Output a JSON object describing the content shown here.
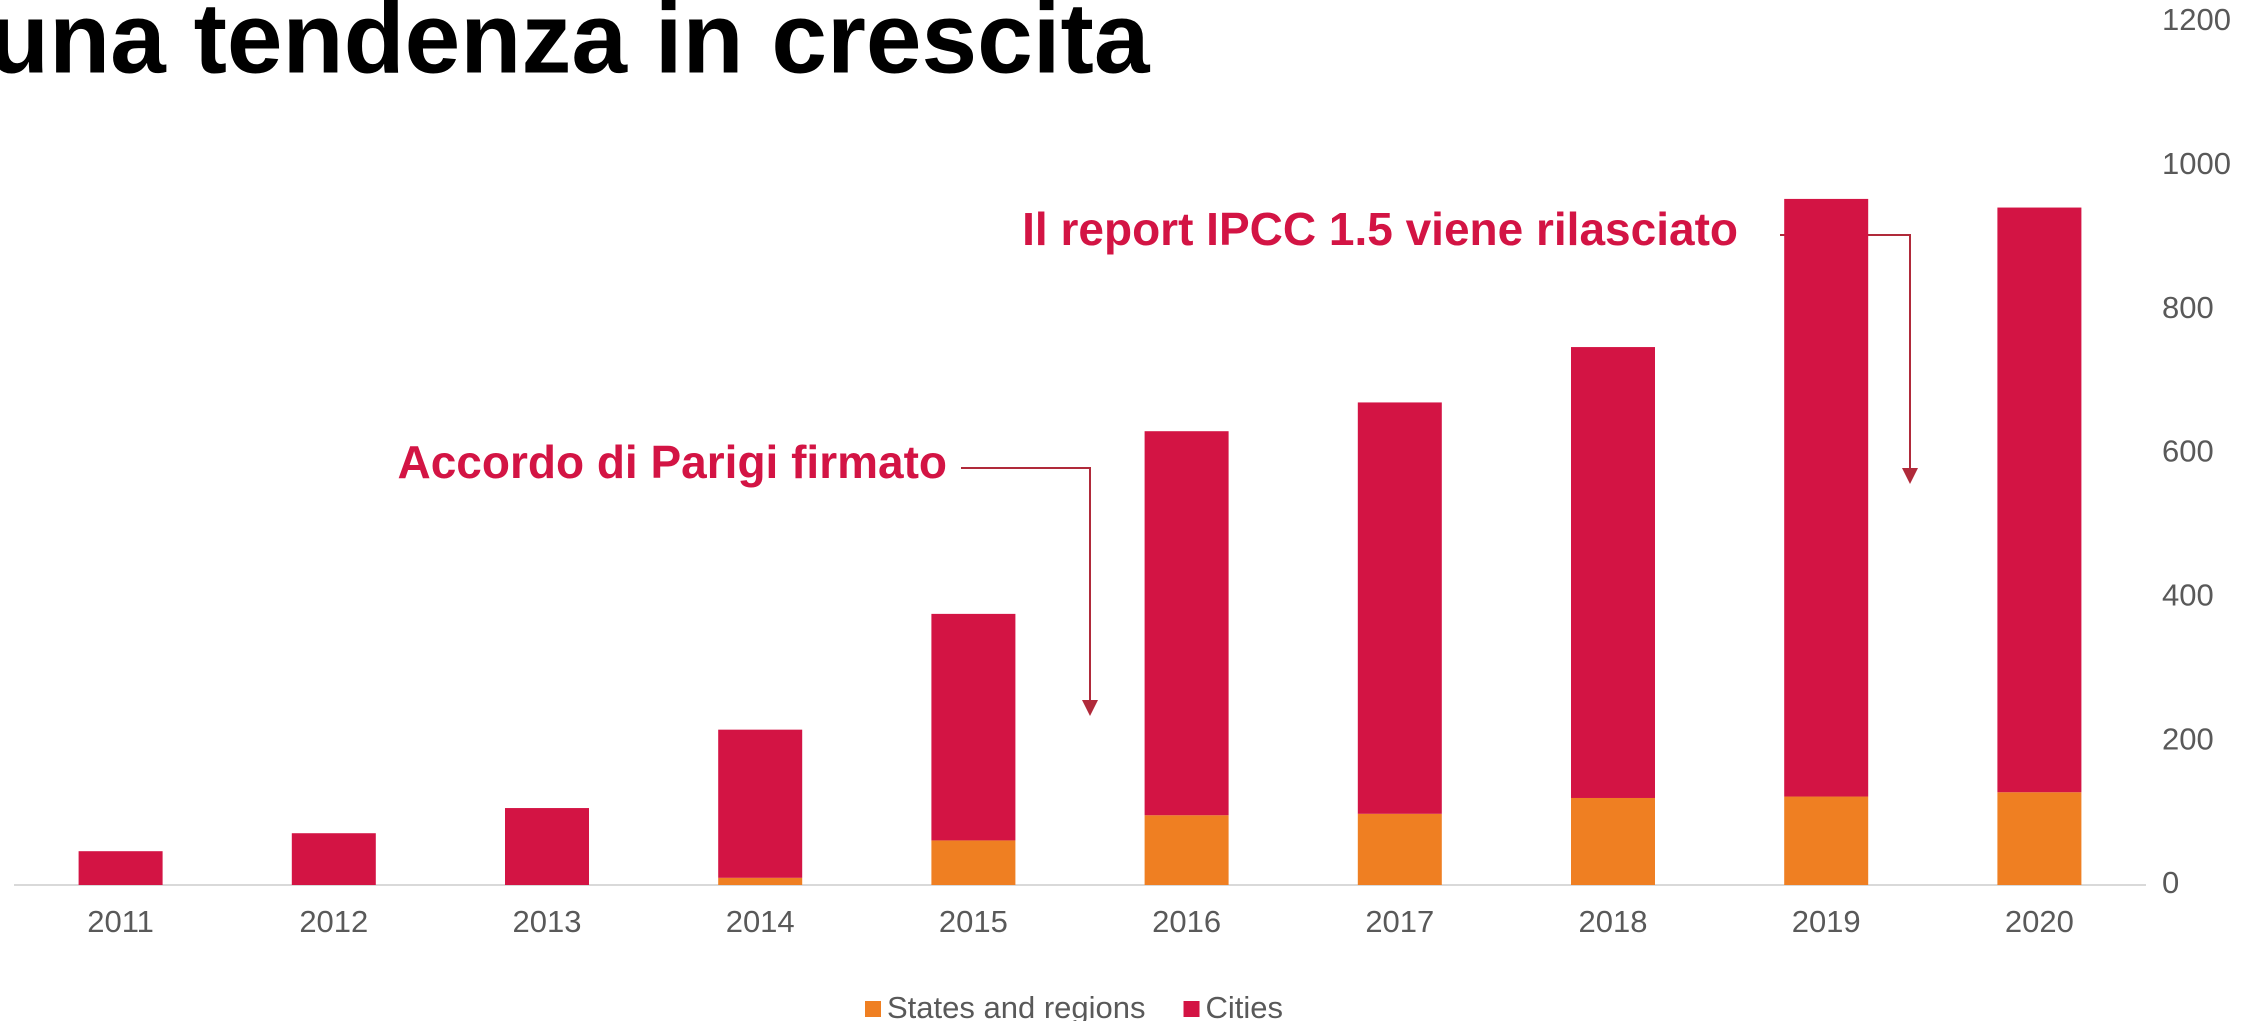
{
  "chart_data": {
    "type": "stacked_bar",
    "title": "una tendenza in crescita",
    "categories": [
      "2011",
      "2012",
      "2013",
      "2014",
      "2015",
      "2016",
      "2017",
      "2018",
      "2019",
      "2020"
    ],
    "series": [
      {
        "name": "States and regions",
        "color": "#ef7f22",
        "values": [
          0,
          0,
          0,
          10,
          62,
          97,
          99,
          121,
          123,
          129
        ]
      },
      {
        "name": "Cities",
        "color": "#d31444",
        "values": [
          47,
          72,
          107,
          206,
          315,
          534,
          572,
          627,
          831,
          813
        ]
      }
    ],
    "ylim": [
      0,
      1200
    ],
    "yticks": [
      0,
      200,
      400,
      600,
      800,
      1000,
      1200
    ],
    "annotations": [
      "Accordo di Parigi firmato",
      "Il report IPCC 1.5 viene rilasciato"
    ],
    "legend": "bottom",
    "grid": false
  }
}
